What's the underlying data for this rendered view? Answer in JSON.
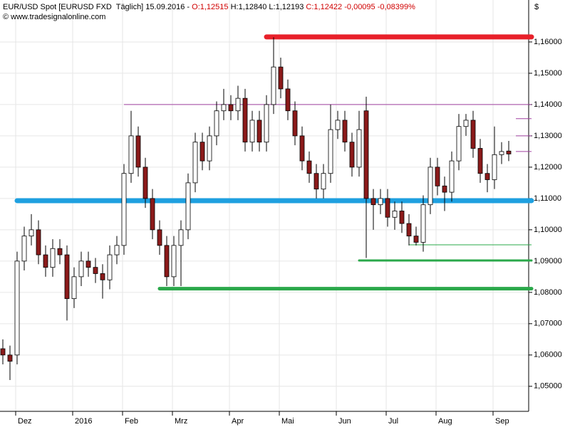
{
  "header": {
    "title": "EUR/USD Spot [EURUSD FXD  Täglich] 15.09.2016 -",
    "open": "O:1,12515",
    "high": "H:1,12840",
    "low": "L:1,12193",
    "close": "C:1,12422",
    "change": "-0,00095 -0,08399%",
    "source": "© www.tradesignalonline.com",
    "currency": "$"
  },
  "chart_data": {
    "type": "candlestick",
    "categories": [
      null,
      "Dez",
      null,
      null,
      null,
      null,
      null,
      null,
      null,
      "2016",
      null,
      null,
      null,
      null,
      null,
      null,
      "Feb",
      null,
      null,
      null,
      null,
      null,
      null,
      "Mrz",
      null,
      null,
      null,
      null,
      null,
      null,
      null,
      "Apr",
      null,
      null,
      null,
      null,
      null,
      null,
      "Mai",
      null,
      null,
      null,
      null,
      null,
      null,
      null,
      "Jun",
      null,
      null,
      null,
      null,
      null,
      null,
      "Jul",
      null,
      null,
      null,
      null,
      null,
      null,
      "Aug",
      null,
      null,
      null,
      null,
      null,
      null,
      null,
      "Sep",
      null,
      null,
      null
    ],
    "open": [
      1.062,
      1.06,
      1.06,
      1.09,
      1.098,
      1.1,
      1.092,
      1.088,
      1.094,
      1.092,
      1.078,
      1.085,
      1.09,
      1.088,
      1.086,
      1.084,
      1.092,
      1.095,
      1.118,
      1.13,
      1.12,
      1.11,
      1.1,
      1.095,
      1.085,
      1.095,
      1.1,
      1.115,
      1.128,
      1.122,
      1.13,
      1.138,
      1.14,
      1.138,
      1.142,
      1.128,
      1.135,
      1.128,
      1.14,
      1.152,
      1.145,
      1.138,
      1.13,
      1.122,
      1.118,
      1.113,
      1.118,
      1.132,
      1.135,
      1.128,
      1.12,
      1.138,
      1.11,
      1.108,
      1.11,
      1.104,
      1.106,
      1.102,
      1.098,
      1.096,
      1.108,
      1.12,
      1.114,
      1.112,
      1.122,
      1.133,
      1.135,
      1.126,
      1.118,
      1.116,
      1.124,
      1.12515
    ],
    "high": [
      1.065,
      1.063,
      1.093,
      1.101,
      1.105,
      1.103,
      1.095,
      1.097,
      1.097,
      1.095,
      1.088,
      1.093,
      1.093,
      1.091,
      1.089,
      1.095,
      1.098,
      1.121,
      1.138,
      1.133,
      1.123,
      1.113,
      1.103,
      1.098,
      1.098,
      1.103,
      1.118,
      1.131,
      1.131,
      1.133,
      1.141,
      1.145,
      1.143,
      1.146,
      1.145,
      1.138,
      1.138,
      1.143,
      1.1615,
      1.155,
      1.148,
      1.141,
      1.133,
      1.125,
      1.121,
      1.121,
      1.14,
      1.138,
      1.138,
      1.131,
      1.138,
      1.1425,
      1.113,
      1.113,
      1.113,
      1.109,
      1.109,
      1.105,
      1.101,
      1.111,
      1.123,
      1.123,
      1.117,
      1.125,
      1.137,
      1.137,
      1.138,
      1.129,
      1.121,
      1.133,
      1.128,
      1.1284
    ],
    "low": [
      1.057,
      1.052,
      1.057,
      1.087,
      1.095,
      1.089,
      1.085,
      1.085,
      1.089,
      1.071,
      1.075,
      1.082,
      1.085,
      1.083,
      1.078,
      1.081,
      1.089,
      1.092,
      1.115,
      1.117,
      1.107,
      1.097,
      1.092,
      1.082,
      1.082,
      1.082,
      1.097,
      1.112,
      1.119,
      1.119,
      1.127,
      1.135,
      1.135,
      1.135,
      1.125,
      1.125,
      1.125,
      1.125,
      1.137,
      1.142,
      1.135,
      1.127,
      1.119,
      1.115,
      1.11,
      1.11,
      1.115,
      1.129,
      1.125,
      1.117,
      1.117,
      1.091,
      1.1,
      1.105,
      1.101,
      1.1,
      1.099,
      1.095,
      1.095,
      1.093,
      1.105,
      1.111,
      1.106,
      1.109,
      1.119,
      1.13,
      1.123,
      1.115,
      1.112,
      1.113,
      1.121,
      1.12193
    ],
    "close": [
      1.06,
      1.058,
      1.09,
      1.098,
      1.1,
      1.092,
      1.088,
      1.094,
      1.092,
      1.078,
      1.085,
      1.09,
      1.088,
      1.086,
      1.084,
      1.092,
      1.095,
      1.118,
      1.13,
      1.12,
      1.11,
      1.1,
      1.095,
      1.085,
      1.095,
      1.1,
      1.115,
      1.128,
      1.122,
      1.13,
      1.138,
      1.14,
      1.138,
      1.142,
      1.128,
      1.135,
      1.128,
      1.14,
      1.152,
      1.145,
      1.138,
      1.13,
      1.122,
      1.118,
      1.113,
      1.118,
      1.132,
      1.135,
      1.128,
      1.12,
      1.132,
      1.11,
      1.108,
      1.11,
      1.104,
      1.106,
      1.102,
      1.098,
      1.096,
      1.108,
      1.12,
      1.114,
      1.112,
      1.122,
      1.133,
      1.135,
      1.126,
      1.118,
      1.116,
      1.124,
      1.125,
      1.12422
    ],
    "up_color": "#ffffff",
    "down_color": "#8b1a1a",
    "levels": [
      {
        "value": 1.1616,
        "start": 37,
        "color": "#e8202a",
        "width": 7
      },
      {
        "value": 1.14,
        "start": 17,
        "color": "#a040a0",
        "width": 1
      },
      {
        "value": 1.1093,
        "start": 2,
        "color": "#1ea0e0",
        "width": 7
      },
      {
        "value": 1.0812,
        "start": 22,
        "color": "#2aa84a",
        "width": 5
      },
      {
        "value": 1.0902,
        "start": 50,
        "color": "#2aa84a",
        "width": 3
      },
      {
        "value": 1.0952,
        "start": 57,
        "color": "#2aa84a",
        "width": 1
      },
      {
        "value": 1.1355,
        "start": 72,
        "color": "#a040a0",
        "width": 1
      },
      {
        "value": 1.13,
        "start": 72,
        "color": "#a040a0",
        "width": 1
      },
      {
        "value": 1.125,
        "start": 72,
        "color": "#a040a0",
        "width": 1
      }
    ],
    "ylim": [
      1.042,
      1.1734
    ],
    "yticks": [
      {
        "value": 1.05,
        "label": "1,05000"
      },
      {
        "value": 1.06,
        "label": "1,06000"
      },
      {
        "value": 1.07,
        "label": "1,07000"
      },
      {
        "value": 1.08,
        "label": "1,08000"
      },
      {
        "value": 1.09,
        "label": "1,09000"
      },
      {
        "value": 1.1,
        "label": "1,10000"
      },
      {
        "value": 1.11,
        "label": "1,11000"
      },
      {
        "value": 1.12,
        "label": "1,12000"
      },
      {
        "value": 1.13,
        "label": "1,13000"
      },
      {
        "value": 1.14,
        "label": "1,14000"
      },
      {
        "value": 1.15,
        "label": "1,15000"
      },
      {
        "value": 1.16,
        "label": "1,16000"
      }
    ],
    "grid": true
  }
}
